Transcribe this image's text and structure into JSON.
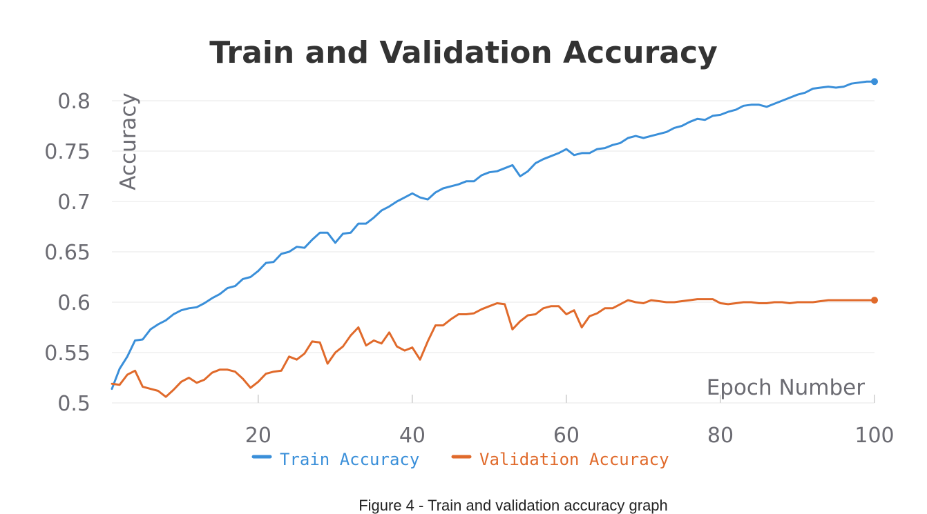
{
  "chart_data": {
    "type": "line",
    "title": "Train and Validation Accuracy",
    "xlabel": "Epoch Number",
    "ylabel": "Accuracy",
    "xlim": [
      1,
      100
    ],
    "ylim": [
      0.5,
      0.82
    ],
    "x_ticks": [
      "20",
      "40",
      "60",
      "80",
      "100"
    ],
    "x_tick_values": [
      20,
      40,
      60,
      80,
      100
    ],
    "y_ticks": [
      "0.5",
      "0.55",
      "0.6",
      "0.65",
      "0.7",
      "0.75",
      "0.8"
    ],
    "y_tick_values": [
      0.5,
      0.55,
      0.6,
      0.65,
      0.7,
      0.75,
      0.8
    ],
    "grid": true,
    "legend_position": "bottom",
    "series": [
      {
        "name": "Train Accuracy",
        "color": "#3a8fd9",
        "x": [
          1,
          2,
          3,
          4,
          5,
          6,
          7,
          8,
          9,
          10,
          11,
          12,
          13,
          14,
          15,
          16,
          17,
          18,
          19,
          20,
          21,
          22,
          23,
          24,
          25,
          26,
          27,
          28,
          29,
          30,
          31,
          32,
          33,
          34,
          35,
          36,
          37,
          38,
          39,
          40,
          41,
          42,
          43,
          44,
          45,
          46,
          47,
          48,
          49,
          50,
          51,
          52,
          53,
          54,
          55,
          56,
          57,
          58,
          59,
          60,
          61,
          62,
          63,
          64,
          65,
          66,
          67,
          68,
          69,
          70,
          71,
          72,
          73,
          74,
          75,
          76,
          77,
          78,
          79,
          80,
          81,
          82,
          83,
          84,
          85,
          86,
          87,
          88,
          89,
          90,
          91,
          92,
          93,
          94,
          95,
          96,
          97,
          98,
          99,
          100
        ],
        "values": [
          0.514,
          0.534,
          0.546,
          0.562,
          0.563,
          0.573,
          0.578,
          0.582,
          0.588,
          0.592,
          0.594,
          0.595,
          0.599,
          0.604,
          0.608,
          0.614,
          0.616,
          0.623,
          0.625,
          0.631,
          0.639,
          0.64,
          0.648,
          0.65,
          0.655,
          0.654,
          0.662,
          0.669,
          0.669,
          0.659,
          0.668,
          0.669,
          0.678,
          0.678,
          0.684,
          0.691,
          0.695,
          0.7,
          0.704,
          0.708,
          0.704,
          0.702,
          0.709,
          0.713,
          0.715,
          0.717,
          0.72,
          0.72,
          0.726,
          0.729,
          0.73,
          0.733,
          0.736,
          0.725,
          0.73,
          0.738,
          0.742,
          0.745,
          0.748,
          0.752,
          0.746,
          0.748,
          0.748,
          0.752,
          0.753,
          0.756,
          0.758,
          0.763,
          0.765,
          0.763,
          0.765,
          0.767,
          0.769,
          0.773,
          0.775,
          0.779,
          0.782,
          0.781,
          0.785,
          0.786,
          0.789,
          0.791,
          0.795,
          0.796,
          0.796,
          0.794,
          0.797,
          0.8,
          0.803,
          0.806,
          0.808,
          0.812,
          0.813,
          0.814,
          0.813,
          0.814,
          0.817,
          0.818,
          0.819,
          0.819
        ]
      },
      {
        "name": "Validation Accuracy",
        "color": "#e06a2b",
        "x": [
          1,
          2,
          3,
          4,
          5,
          6,
          7,
          8,
          9,
          10,
          11,
          12,
          13,
          14,
          15,
          16,
          17,
          18,
          19,
          20,
          21,
          22,
          23,
          24,
          25,
          26,
          27,
          28,
          29,
          30,
          31,
          32,
          33,
          34,
          35,
          36,
          37,
          38,
          39,
          40,
          41,
          42,
          43,
          44,
          45,
          46,
          47,
          48,
          49,
          50,
          51,
          52,
          53,
          54,
          55,
          56,
          57,
          58,
          59,
          60,
          61,
          62,
          63,
          64,
          65,
          66,
          67,
          68,
          69,
          70,
          71,
          72,
          73,
          74,
          75,
          76,
          77,
          78,
          79,
          80,
          81,
          82,
          83,
          84,
          85,
          86,
          87,
          88,
          89,
          90,
          91,
          92,
          93,
          94,
          95,
          96,
          97,
          98,
          99,
          100
        ],
        "values": [
          0.519,
          0.518,
          0.528,
          0.532,
          0.516,
          0.514,
          0.512,
          0.506,
          0.513,
          0.521,
          0.525,
          0.52,
          0.523,
          0.53,
          0.533,
          0.533,
          0.531,
          0.524,
          0.515,
          0.521,
          0.529,
          0.531,
          0.532,
          0.546,
          0.543,
          0.549,
          0.561,
          0.56,
          0.539,
          0.55,
          0.556,
          0.567,
          0.575,
          0.557,
          0.562,
          0.559,
          0.57,
          0.556,
          0.552,
          0.555,
          0.543,
          0.561,
          0.577,
          0.577,
          0.583,
          0.588,
          0.588,
          0.589,
          0.593,
          0.596,
          0.599,
          0.598,
          0.573,
          0.581,
          0.587,
          0.588,
          0.594,
          0.596,
          0.596,
          0.588,
          0.592,
          0.575,
          0.586,
          0.589,
          0.594,
          0.594,
          0.598,
          0.602,
          0.6,
          0.599,
          0.602,
          0.601,
          0.6,
          0.6,
          0.601,
          0.602,
          0.603,
          0.603,
          0.603,
          0.599,
          0.598,
          0.599,
          0.6,
          0.6,
          0.599,
          0.599,
          0.6,
          0.6,
          0.599,
          0.6,
          0.6,
          0.6,
          0.601,
          0.602,
          0.602,
          0.602,
          0.602,
          0.602,
          0.602,
          0.602
        ]
      }
    ]
  },
  "caption": "Figure 4 - Train and validation accuracy graph"
}
